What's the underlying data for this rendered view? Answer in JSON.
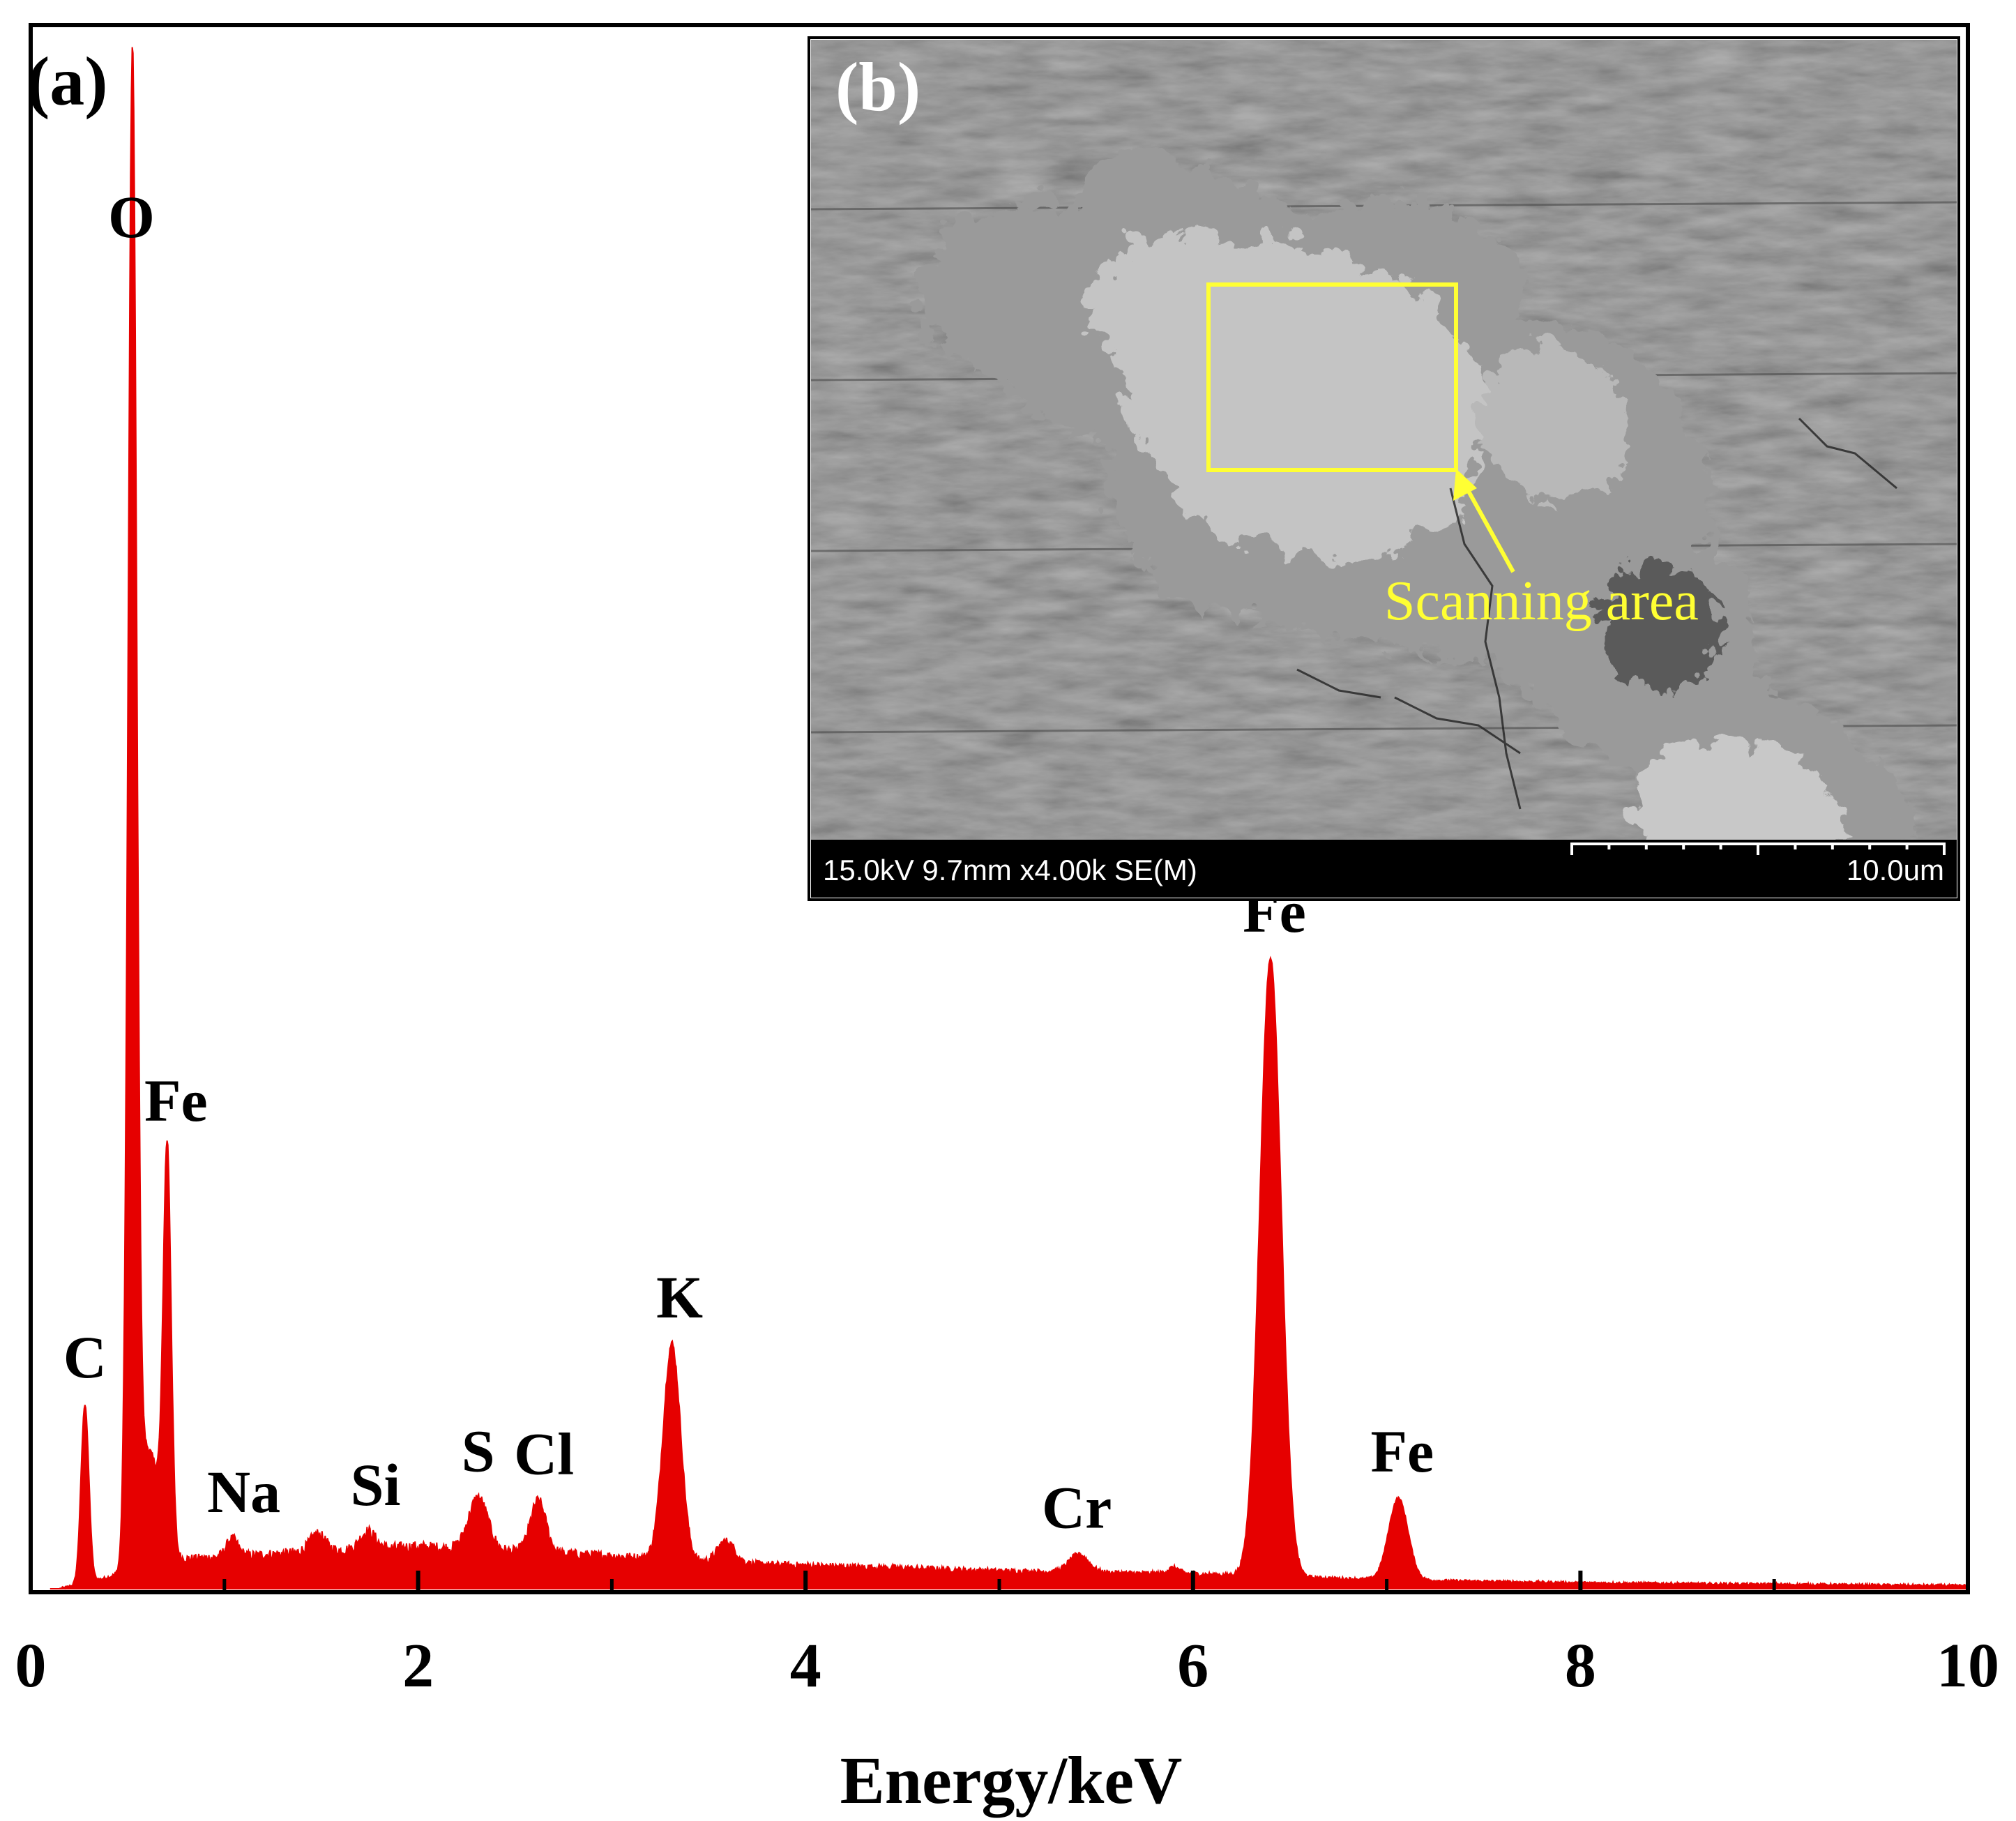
{
  "chart_data": {
    "type": "area",
    "panel_label": "(a)",
    "xlabel": "Energy/keV",
    "ylabel": "",
    "xlim": [
      0,
      10
    ],
    "ylim": [
      0,
      1.05
    ],
    "xticks": [
      0,
      2,
      4,
      6,
      8,
      10
    ],
    "xtick_labels": [
      "0",
      "2",
      "4",
      "6",
      "8",
      "10"
    ],
    "minor_xticks": [
      1,
      3,
      5,
      7,
      9
    ],
    "series_color": "#e60000",
    "baseline": [
      [
        0.1,
        0.0
      ],
      [
        0.15,
        0.0
      ],
      [
        0.8,
        0.02
      ],
      [
        1.5,
        0.025
      ],
      [
        2.0,
        0.028
      ],
      [
        2.5,
        0.025
      ],
      [
        3.0,
        0.022
      ],
      [
        3.6,
        0.017
      ],
      [
        4.5,
        0.014
      ],
      [
        5.0,
        0.012
      ],
      [
        6.0,
        0.01
      ],
      [
        7.0,
        0.006
      ],
      [
        8.0,
        0.004
      ],
      [
        9.0,
        0.003
      ],
      [
        10.0,
        0.002
      ]
    ],
    "peaks": [
      {
        "center": 0.28,
        "height": 0.12,
        "width": 0.02
      },
      {
        "center": 0.525,
        "height": 0.99,
        "width": 0.022
      },
      {
        "center": 0.58,
        "height": 0.06,
        "width": 0.05
      },
      {
        "center": 0.705,
        "height": 0.26,
        "width": 0.02
      },
      {
        "center": 0.65,
        "height": 0.04,
        "width": 0.05
      },
      {
        "center": 1.04,
        "height": 0.012,
        "width": 0.03
      },
      {
        "center": 1.48,
        "height": 0.012,
        "width": 0.04
      },
      {
        "center": 1.74,
        "height": 0.012,
        "width": 0.04
      },
      {
        "center": 2.31,
        "height": 0.035,
        "width": 0.05
      },
      {
        "center": 2.62,
        "height": 0.035,
        "width": 0.04
      },
      {
        "center": 3.31,
        "height": 0.145,
        "width": 0.045
      },
      {
        "center": 3.59,
        "height": 0.015,
        "width": 0.045
      },
      {
        "center": 5.41,
        "height": 0.012,
        "width": 0.05
      },
      {
        "center": 5.9,
        "height": 0.004,
        "width": 0.03
      },
      {
        "center": 6.4,
        "height": 0.415,
        "width": 0.055
      },
      {
        "center": 7.06,
        "height": 0.055,
        "width": 0.05
      }
    ],
    "peak_labels": [
      {
        "text": "C",
        "x": 0.28
      },
      {
        "text": "O",
        "x": 0.52
      },
      {
        "text": "Fe",
        "x": 0.75
      },
      {
        "text": "Na",
        "x": 1.1
      },
      {
        "text": "Si",
        "x": 1.78
      },
      {
        "text": "S",
        "x": 2.31
      },
      {
        "text": "Cl",
        "x": 2.65
      },
      {
        "text": "K",
        "x": 3.35
      },
      {
        "text": "Cr",
        "x": 5.4
      },
      {
        "text": "Fe",
        "x": 6.42
      },
      {
        "text": "Fe",
        "x": 7.08
      }
    ]
  },
  "inset": {
    "panel_label": "(b)",
    "annotation": "Scanning area",
    "sem_info": "15.0kV 9.7mm x4.00k SE(M)",
    "scale_label": "10.0um",
    "annotation_color": "#ffff33"
  }
}
